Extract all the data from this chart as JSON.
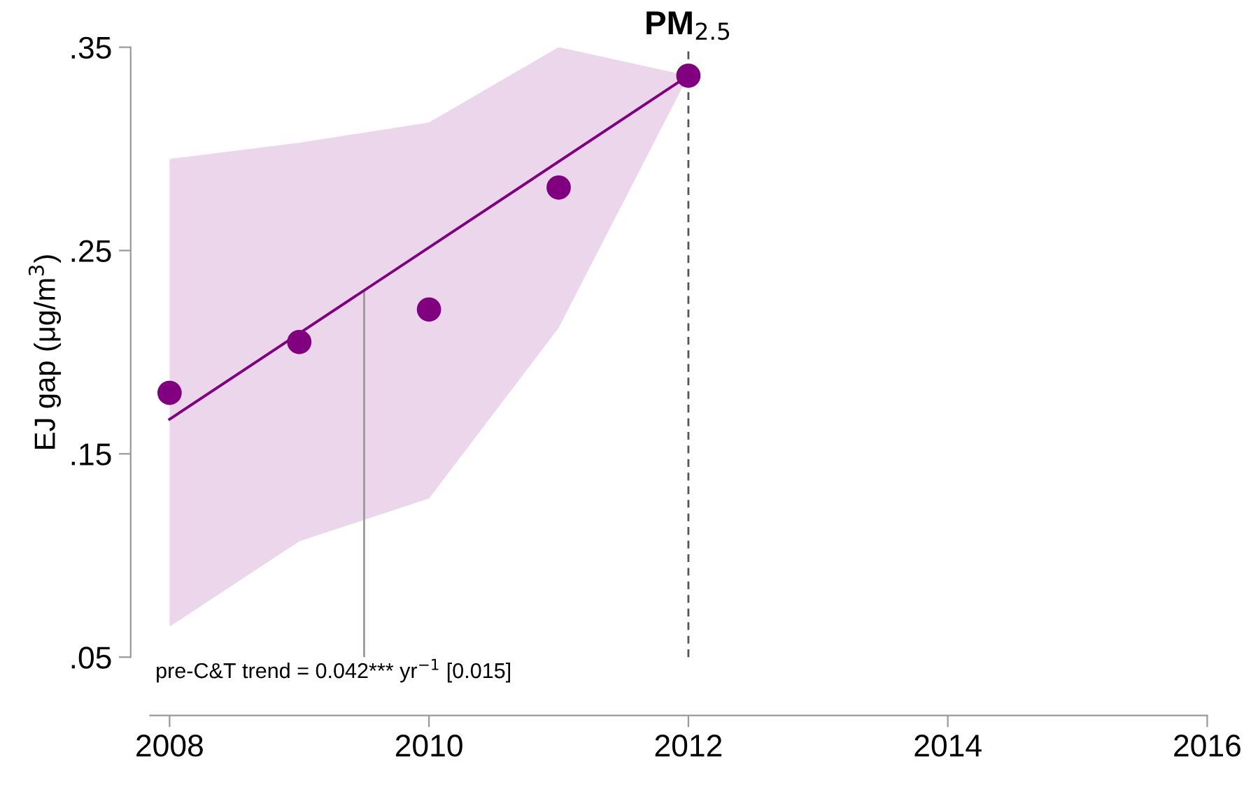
{
  "chart_data": {
    "type": "scatter",
    "ylabel": "EJ gap (μg/m$^{3}$)",
    "x": [
      2008,
      2009,
      2010,
      2011,
      2012
    ],
    "series": [
      {
        "color": "#800080",
        "marker": "circle",
        "values": [
          0.18,
          0.205,
          0.221,
          0.281,
          0.336
        ],
        "lower": [
          0.065,
          0.107,
          0.128,
          0.212,
          0.336
        ],
        "upper": [
          0.295,
          0.303,
          0.313,
          0.35,
          0.336
        ]
      },
      {
        "type": "line",
        "color": "#800080",
        "marker": "none",
        "x": [
          2008,
          2012
        ],
        "values": [
          0.167,
          0.336
        ]
      }
    ],
    "ref_lines": [
      {
        "axis": "x",
        "value": 2009.5,
        "color": "#999999",
        "line_style": "solid"
      },
      {
        "axis": "x",
        "value": 2012,
        "color": "#555555",
        "line_style": "dashed",
        "label": "PM$_{2.5}$"
      }
    ],
    "annotations": [
      "pre-C&T trend = 0.042*** yr$^{−1}$ [0.015]"
    ],
    "xlim": [
      2007.85,
      2016
    ],
    "xticks": [
      2008,
      2010,
      2012,
      2014,
      2016
    ],
    "ylim": [
      0.05,
      0.35
    ],
    "yticks": [
      {
        "value": 0.05,
        "label": ".05"
      },
      {
        "value": 0.15,
        "label": ".15"
      },
      {
        "value": 0.25,
        "label": ".25"
      },
      {
        "value": 0.35,
        "label": ".35"
      }
    ],
    "grid": false,
    "legend": false
  }
}
